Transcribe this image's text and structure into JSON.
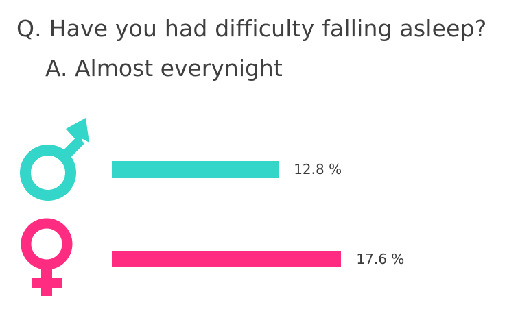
{
  "question": "Q. Have you had difficulty falling asleep?",
  "answer": "A. Almost everynight",
  "chart_data": {
    "type": "bar",
    "orientation": "horizontal",
    "categories": [
      "male",
      "female"
    ],
    "values": [
      12.8,
      17.6
    ],
    "value_labels": [
      "12.8 %",
      "17.6 %"
    ],
    "colors": [
      "#33d6c8",
      "#ff2c82"
    ],
    "xlim": [
      0,
      20
    ],
    "grid": false,
    "legend": "none"
  },
  "icons": {
    "male": "male-symbol-icon",
    "female": "female-symbol-icon"
  }
}
